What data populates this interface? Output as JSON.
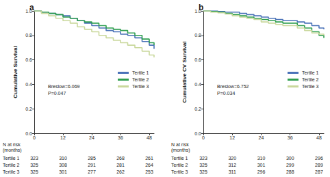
{
  "chart_data": [
    {
      "type": "step",
      "title": "a",
      "y_label": "Cumulative Survival",
      "x": [
        0,
        3,
        6,
        9,
        12,
        15,
        18,
        21,
        24,
        27,
        30,
        33,
        36,
        39,
        42,
        45,
        48,
        50
      ],
      "series": [
        {
          "name": "Tertile 1",
          "color": "#4a72b8",
          "line_style": "solid",
          "values": [
            1,
            0.99,
            0.98,
            0.97,
            0.96,
            0.94,
            0.92,
            0.9,
            0.88,
            0.86,
            0.84,
            0.83,
            0.81,
            0.8,
            0.78,
            0.75,
            0.72,
            0.69
          ]
        },
        {
          "name": "Tertile 2",
          "color": "#2e9e4f",
          "line_style": "solid",
          "values": [
            1,
            0.99,
            0.98,
            0.97,
            0.95,
            0.94,
            0.92,
            0.91,
            0.9,
            0.88,
            0.86,
            0.85,
            0.84,
            0.82,
            0.8,
            0.77,
            0.74,
            0.72
          ]
        },
        {
          "name": "Tertile 3",
          "color": "#c9d89c",
          "line_style": "solid",
          "values": [
            1,
            0.98,
            0.96,
            0.94,
            0.92,
            0.9,
            0.87,
            0.85,
            0.83,
            0.8,
            0.78,
            0.76,
            0.74,
            0.72,
            0.7,
            0.67,
            0.64,
            0.62
          ]
        }
      ],
      "xlim": [
        0,
        50
      ],
      "xticks": [
        0,
        12,
        24,
        36,
        48
      ],
      "ylim": [
        0,
        1
      ],
      "yticks": [
        {
          "value": 0,
          "label": "0.0"
        },
        {
          "value": 0.2,
          "label": "0.2"
        },
        {
          "value": 0.4,
          "label": "0.4"
        },
        {
          "value": 0.6,
          "label": "0.6"
        },
        {
          "value": 0.8,
          "label": "0.8"
        },
        {
          "value": 1,
          "label": "1.0"
        }
      ],
      "grid": false,
      "legend": "right",
      "annotations": [
        "Breslow=6.069",
        "P=0.047"
      ],
      "risk_table": {
        "label": "N at risk",
        "unit": "(months)",
        "rows": [
          {
            "name": "Tertile 1",
            "values": [
              323,
              310,
              285,
              268,
              261
            ]
          },
          {
            "name": "Tertile 2",
            "values": [
              325,
              308,
              291,
              281,
              264
            ]
          },
          {
            "name": "Tertile 3",
            "values": [
              325,
              301,
              277,
              262,
              253
            ]
          }
        ]
      }
    },
    {
      "type": "step",
      "title": "b",
      "y_label": "Cumulative CV Survival",
      "x": [
        0,
        3,
        6,
        9,
        12,
        15,
        18,
        21,
        24,
        27,
        30,
        33,
        36,
        39,
        42,
        45,
        48,
        50
      ],
      "series": [
        {
          "name": "Tertile 1",
          "color": "#4a72b8",
          "line_style": "solid",
          "values": [
            1,
            1,
            0.995,
            0.99,
            0.99,
            0.98,
            0.97,
            0.96,
            0.95,
            0.94,
            0.93,
            0.92,
            0.92,
            0.91,
            0.9,
            0.88,
            0.86,
            0.85
          ]
        },
        {
          "name": "Tertile 2",
          "color": "#2e9e4f",
          "line_style": "solid",
          "values": [
            1,
            0.995,
            0.99,
            0.98,
            0.97,
            0.96,
            0.95,
            0.94,
            0.93,
            0.92,
            0.91,
            0.9,
            0.9,
            0.88,
            0.86,
            0.83,
            0.8,
            0.78
          ]
        },
        {
          "name": "Tertile 3",
          "color": "#c9d89c",
          "line_style": "solid",
          "values": [
            1,
            0.99,
            0.985,
            0.975,
            0.96,
            0.95,
            0.94,
            0.93,
            0.91,
            0.9,
            0.89,
            0.88,
            0.88,
            0.86,
            0.84,
            0.82,
            0.81,
            0.8
          ]
        }
      ],
      "xlim": [
        0,
        50
      ],
      "xticks": [
        0,
        12,
        24,
        36,
        48
      ],
      "ylim": [
        0,
        1
      ],
      "yticks": [
        {
          "value": 0,
          "label": "0.0"
        },
        {
          "value": 0.2,
          "label": "0.2"
        },
        {
          "value": 0.4,
          "label": "0.4"
        },
        {
          "value": 0.6,
          "label": "0.6"
        },
        {
          "value": 0.8,
          "label": "0.8"
        },
        {
          "value": 1,
          "label": "1.0"
        }
      ],
      "grid": false,
      "legend": "right",
      "annotations": [
        "Breslow=6.752",
        "P=0.034"
      ],
      "risk_table": {
        "label": "N at risk",
        "unit": "(months)",
        "rows": [
          {
            "name": "Tertile 1",
            "values": [
              323,
              320,
              310,
              300,
              296
            ]
          },
          {
            "name": "Tertile 2",
            "values": [
              325,
              312,
              301,
              299,
              289
            ]
          },
          {
            "name": "Tertile 3",
            "values": [
              325,
              311,
              296,
              288,
              287
            ]
          }
        ]
      }
    }
  ]
}
